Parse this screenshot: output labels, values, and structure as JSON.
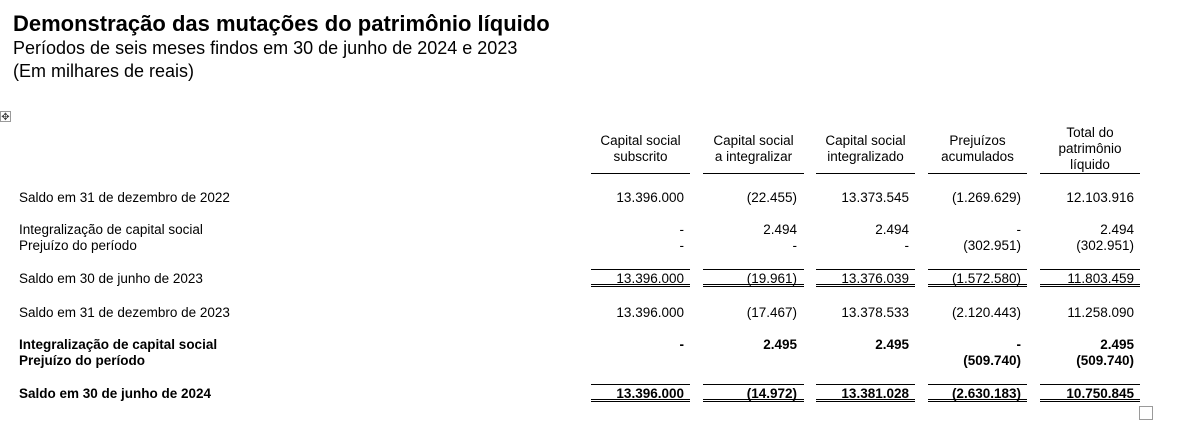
{
  "header": {
    "title": "Demonstração das mutações do patrimônio líquido",
    "subtitle": "Períodos de seis meses findos em 30 de junho de 2024 e 2023",
    "units": "(Em milhares de reais)"
  },
  "table": {
    "columns": [
      {
        "line1": "Capital social",
        "line2": "subscrito",
        "line3": ""
      },
      {
        "line1": "Capital social",
        "line2": "a integralizar",
        "line3": ""
      },
      {
        "line1": "Capital social",
        "line2": "integralizado",
        "line3": ""
      },
      {
        "line1": "Prejuízos",
        "line2": "acumulados",
        "line3": ""
      },
      {
        "line1": "Total do",
        "line2": "patrimônio",
        "line3": "líquido"
      }
    ],
    "rows": [
      {
        "label": "Saldo em 31 de dezembro de 2022",
        "values": [
          "13.396.000",
          "(22.455)",
          "13.373.545",
          "(1.269.629)",
          "12.103.916"
        ]
      },
      {
        "label": "Integralização de capital social",
        "values": [
          "-",
          "2.494",
          "2.494",
          "-",
          "2.494"
        ]
      },
      {
        "label": "Prejuízo do período",
        "values": [
          "-",
          "-",
          "-",
          "(302.951)",
          "(302.951)"
        ]
      },
      {
        "label": "Saldo em 30 de junho de 2023",
        "values": [
          "13.396.000",
          "(19.961)",
          "13.376.039",
          "(1.572.580)",
          "11.803.459"
        ]
      },
      {
        "label": "Saldo em 31 de dezembro de 2023",
        "values": [
          "13.396.000",
          "(17.467)",
          "13.378.533",
          "(2.120.443)",
          "11.258.090"
        ]
      },
      {
        "label": "Integralização de capital social",
        "values": [
          "-",
          "2.495",
          "2.495",
          "-",
          "2.495"
        ]
      },
      {
        "label": "Prejuízo do período",
        "values": [
          "",
          "",
          "",
          "(509.740)",
          "(509.740)"
        ]
      },
      {
        "label": "Saldo em 30 de junho de 2024",
        "values": [
          "13.396.000",
          "(14.972)",
          "13.381.028",
          "(2.630.183)",
          "10.750.845"
        ]
      }
    ]
  }
}
